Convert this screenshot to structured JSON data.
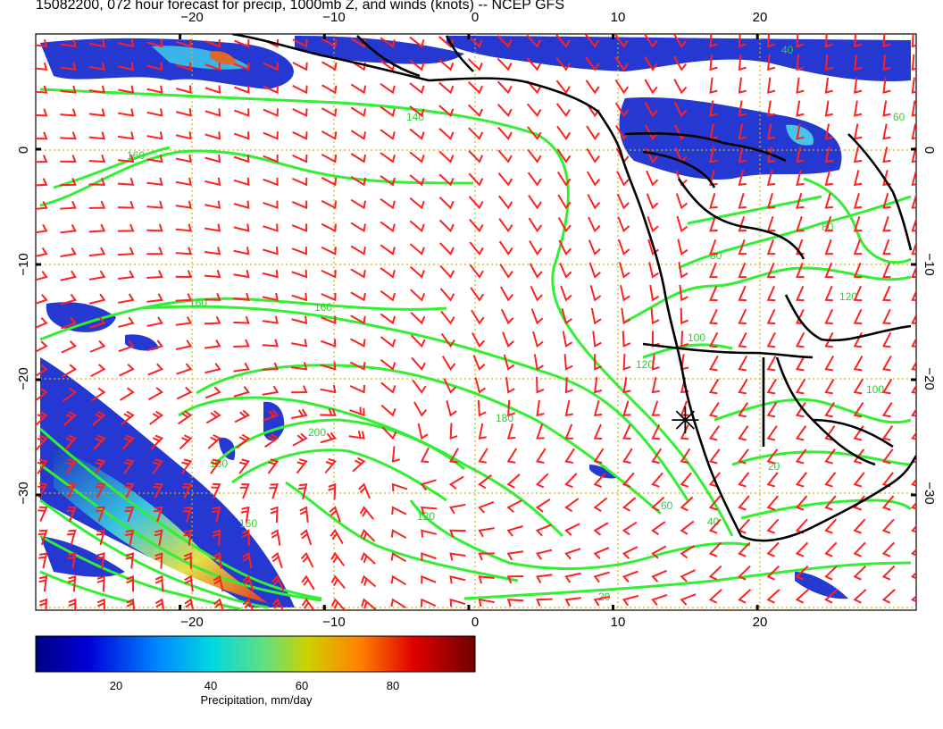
{
  "title": "15082200, 072 hour forecast for precip, 1000mb Z, and winds (knots) -- NCEP GFS",
  "map": {
    "lon_range": [
      -30,
      31
    ],
    "lat_range": [
      -40,
      10
    ],
    "lon_ticks": [
      -20,
      -10,
      0,
      10,
      20
    ],
    "lat_ticks": [
      0,
      -10,
      -20,
      -30
    ],
    "top_tick_labels": [
      "−20",
      "−10",
      "0",
      "10",
      "20"
    ],
    "bottom_tick_labels": [
      "−20",
      "−10",
      "0",
      "10",
      "20"
    ],
    "left_tick_labels": [
      "0",
      "−10",
      "−20",
      "−30"
    ],
    "right_tick_labels": [
      "0",
      "−10",
      "−20",
      "−30"
    ],
    "contour_labels": [
      "160",
      "160",
      "160",
      "180",
      "200",
      "180",
      "160",
      "140",
      "120",
      "120",
      "100",
      "80",
      "60",
      "40",
      "20",
      "120",
      "100",
      "80",
      "60",
      "40",
      "20"
    ],
    "station_marker": {
      "lon": 15,
      "lat": -23.5
    },
    "colors": {
      "contour": "#33ee33",
      "wind_barb": "#ff2020",
      "grid": "#d4b400",
      "coast": "#000000"
    }
  },
  "colorbar": {
    "label": "Precipitation, mm/day",
    "ticks": [
      "20",
      "40",
      "60",
      "80"
    ],
    "tick_values": [
      20,
      40,
      60,
      80
    ],
    "range": [
      0,
      100
    ]
  }
}
